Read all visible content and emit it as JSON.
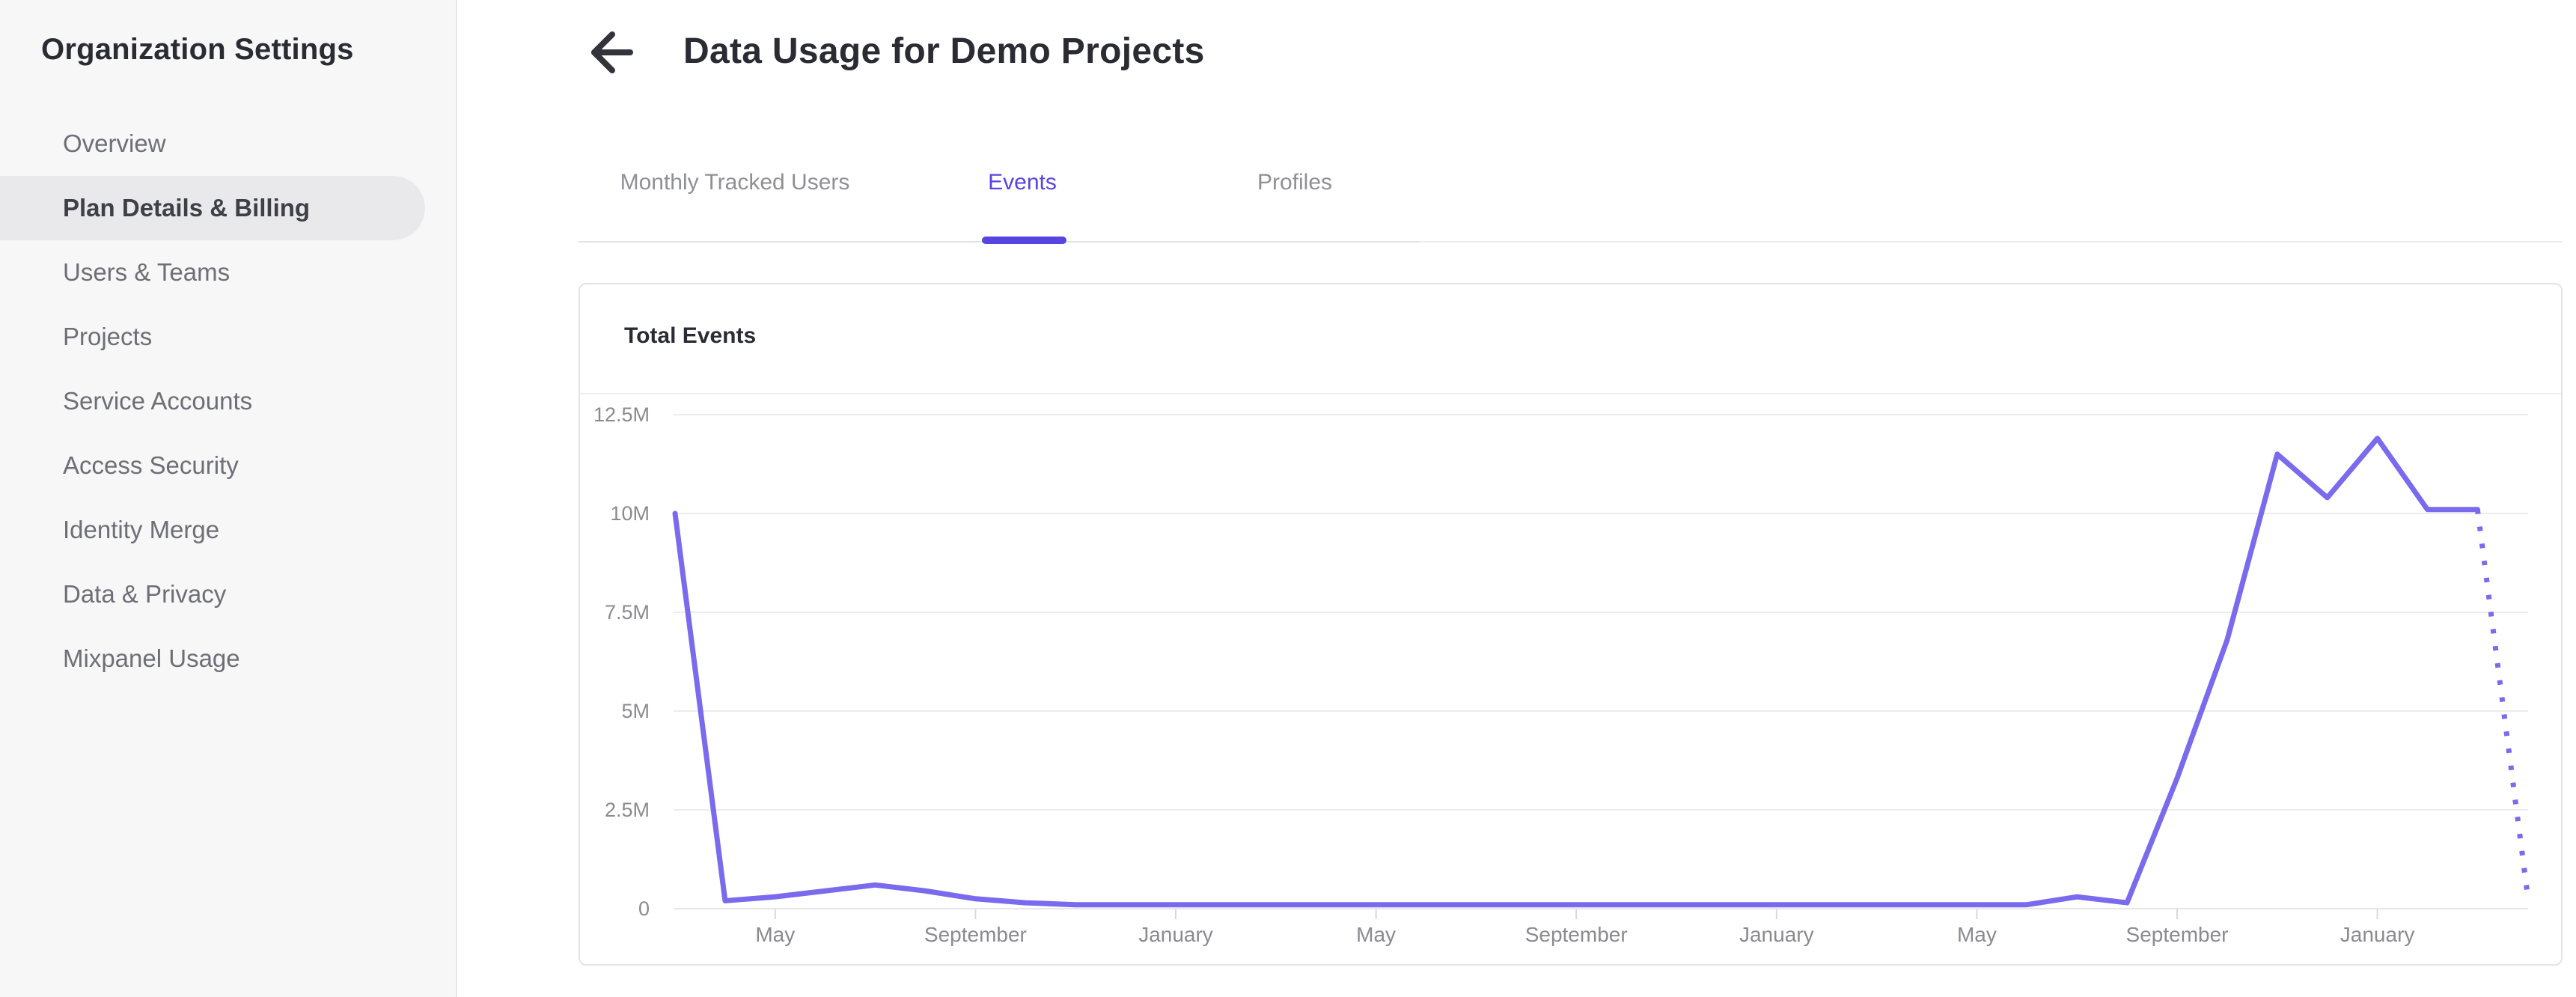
{
  "sidebar": {
    "title": "Organization Settings",
    "items": [
      {
        "label": "Overview",
        "selected": false
      },
      {
        "label": "Plan Details & Billing",
        "selected": true
      },
      {
        "label": "Users & Teams",
        "selected": false
      },
      {
        "label": "Projects",
        "selected": false
      },
      {
        "label": "Service Accounts",
        "selected": false
      },
      {
        "label": "Access Security",
        "selected": false
      },
      {
        "label": "Identity Merge",
        "selected": false
      },
      {
        "label": "Data & Privacy",
        "selected": false
      },
      {
        "label": "Mixpanel Usage",
        "selected": false
      }
    ]
  },
  "header": {
    "back_icon": "left-arrow",
    "title": "Data Usage for Demo Projects"
  },
  "tabs": [
    {
      "label": "Monthly Tracked Users",
      "active": false
    },
    {
      "label": "Events",
      "active": true
    },
    {
      "label": "Profiles",
      "active": false
    }
  ],
  "card": {
    "title": "Total Events"
  },
  "colors": {
    "accent": "#5645e0",
    "line": "#7a6aed",
    "grid": "#ededf0",
    "axis_text": "#8a8a91",
    "sidebar_bg": "#f7f7f8",
    "selected_pill": "#e9e9eb"
  },
  "chart_data": {
    "type": "line",
    "title": "Total Events",
    "ylabel": "",
    "ylim": [
      0,
      12.5
    ],
    "grid": true,
    "legend": "none",
    "y_ticks": [
      {
        "label": "0",
        "value": 0
      },
      {
        "label": "2.5M",
        "value": 2.5
      },
      {
        "label": "5M",
        "value": 5
      },
      {
        "label": "7.5M",
        "value": 7.5
      },
      {
        "label": "10M",
        "value": 10
      },
      {
        "label": "12.5M",
        "value": 12.5
      }
    ],
    "x_unit": "month",
    "x_ticks": [
      {
        "label": "May",
        "index": 2
      },
      {
        "label": "September",
        "index": 6
      },
      {
        "label": "January",
        "index": 10
      },
      {
        "label": "May",
        "index": 14
      },
      {
        "label": "September",
        "index": 18
      },
      {
        "label": "January",
        "index": 22
      },
      {
        "label": "May",
        "index": 26
      },
      {
        "label": "September",
        "index": 30
      },
      {
        "label": "January",
        "index": 34
      }
    ],
    "series": [
      {
        "name": "Total Events",
        "color": "#7a6aed",
        "values_millions": [
          10,
          0.2,
          0.3,
          0.45,
          0.6,
          0.45,
          0.25,
          0.15,
          0.1,
          0.1,
          0.1,
          0.1,
          0.1,
          0.1,
          0.1,
          0.1,
          0.1,
          0.1,
          0.1,
          0.1,
          0.1,
          0.1,
          0.1,
          0.1,
          0.1,
          0.1,
          0.1,
          0.1,
          0.3,
          0.15,
          3.3,
          6.8,
          11.5,
          10.4,
          11.9,
          10.1,
          10.1,
          0.35
        ],
        "projected_tail_points": 1
      }
    ]
  }
}
